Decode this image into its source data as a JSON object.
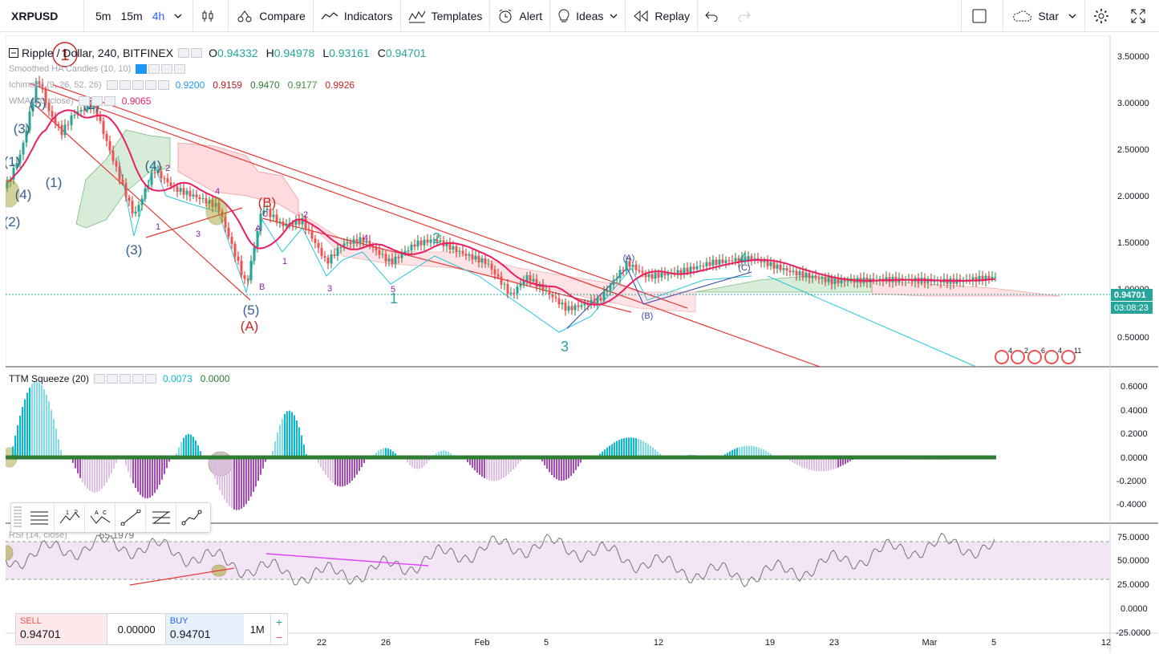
{
  "toolbar": {
    "symbol": "XRPUSD",
    "intervals": [
      "5m",
      "15m",
      "4h"
    ],
    "active_interval": "4h",
    "compare": "Compare",
    "indicators": "Indicators",
    "templates": "Templates",
    "alert": "Alert",
    "ideas": "Ideas",
    "replay": "Replay",
    "star": "Star"
  },
  "main_legend": {
    "title": "Ripple / Dollar, 240, BITFINEX",
    "open_label": "O",
    "open": "0.94332",
    "high_label": "H",
    "high": "0.94978",
    "low_label": "L",
    "low": "0.93161",
    "close_label": "C",
    "close": "0.94701",
    "smoothed": "Smoothed HA Candles (10, 10)",
    "ichimoku": "Ichimoku (9, 26, 52, 26)",
    "ichimoku_values": [
      "0.9200",
      "0.9159",
      "0.9470",
      "0.9177",
      "0.9926"
    ],
    "ichimoku_colors": [
      "#2196f3",
      "#b71c1c",
      "#2e7d32",
      "#388e3c",
      "#c62828"
    ],
    "wma": "WMA (20, close)",
    "wma_value": "0.9065",
    "wma_color": "#e91e63"
  },
  "squeeze_legend": {
    "title": "TTM Squeeze (20)",
    "v1": "0.0073",
    "v2": "0.0000"
  },
  "rsi_legend": {
    "title": "RSI (14, close)",
    "value": "65.1979"
  },
  "price_axis": {
    "ticks": [
      "3.50000",
      "3.00000",
      "2.50000",
      "2.00000",
      "1.50000",
      "1.00000",
      "0.50000"
    ],
    "last_price": "0.94701",
    "countdown": "03:08:23"
  },
  "squeeze_axis": {
    "ticks": [
      "0.6000",
      "0.4000",
      "0.2000",
      "0.0000",
      "-0.2000",
      "-0.4000"
    ]
  },
  "rsi_axis": {
    "ticks": [
      "75.0000",
      "50.0000",
      "25.0000",
      "0.0000",
      "-25.0000"
    ]
  },
  "time_axis": [
    "22",
    "26",
    "Feb",
    "5",
    "12",
    "19",
    "23",
    "Mar",
    "5",
    "12"
  ],
  "wave_labels": {
    "impulse": [
      "1",
      "2",
      "3",
      "4",
      "5"
    ],
    "corrective": [
      "A",
      "B",
      "C"
    ],
    "primary": [
      "1",
      "(1)",
      "(2)",
      "(3)",
      "(4)",
      "(5)",
      "(A)",
      "(B)",
      "(C)"
    ]
  },
  "event_badges": [
    "4",
    "2",
    "6",
    "4",
    "11"
  ],
  "trade": {
    "sell_label": "SELL",
    "sell_price": "0.94701",
    "spread": "0.00000",
    "buy_label": "BUY",
    "buy_price": "0.94701",
    "quantity": "1M",
    "plus": "+",
    "minus": "−"
  },
  "colors": {
    "up": "#26a69a",
    "down": "#ef5350",
    "wma": "#e91e63",
    "trend": "#e53935",
    "cyan": "#26c6da",
    "rsi_band": "#f3e5f5"
  }
}
